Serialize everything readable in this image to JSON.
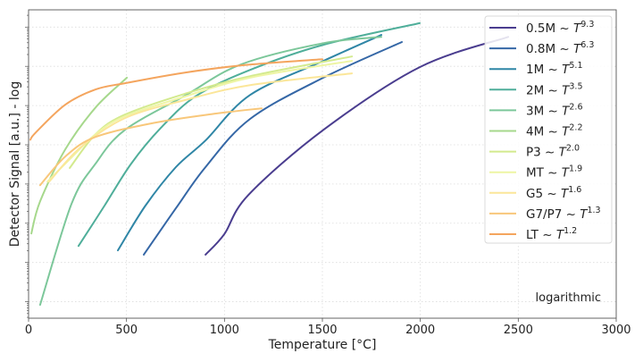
{
  "chart_data": {
    "type": "line",
    "title": "",
    "xlabel": "Temperature [°C]",
    "ylabel": "Detector Signal [a.u.] - log",
    "xlim": [
      0,
      3000
    ],
    "ylim_log10": [
      -0.42,
      7.44
    ],
    "yscale": "log",
    "grid": true,
    "x_ticks": [
      "0",
      "500",
      "1000",
      "1500",
      "2000",
      "2500",
      "3000"
    ],
    "x_tick_values": [
      0,
      500,
      1000,
      1500,
      2000,
      2500,
      3000
    ],
    "y_major_decades": [
      0,
      1,
      2,
      3,
      4,
      5,
      6,
      7
    ],
    "legend_position": "top-right",
    "annotation": "logarithmic",
    "series": [
      {
        "name": "0.5M",
        "exponent": "9.3",
        "color": "#4a3d8f",
        "points": [
          [
            903,
            1.2
          ],
          [
            999,
            1.72
          ],
          [
            1122,
            2.72
          ],
          [
            1505,
            4.38
          ],
          [
            1997,
            5.98
          ],
          [
            2449,
            6.75
          ]
        ]
      },
      {
        "name": "0.8M",
        "exponent": "6.3",
        "color": "#3567a6",
        "points": [
          [
            588,
            1.2
          ],
          [
            752,
            2.38
          ],
          [
            903,
            3.43
          ],
          [
            1131,
            4.66
          ],
          [
            1505,
            5.71
          ],
          [
            1906,
            6.62
          ]
        ]
      },
      {
        "name": "1M",
        "exponent": "5.1",
        "color": "#2f86a6",
        "points": [
          [
            456,
            1.31
          ],
          [
            597,
            2.45
          ],
          [
            752,
            3.43
          ],
          [
            903,
            4.11
          ],
          [
            1131,
            5.27
          ],
          [
            1505,
            6.14
          ],
          [
            1801,
            6.8
          ]
        ]
      },
      {
        "name": "2M",
        "exponent": "3.5",
        "color": "#4fae9a",
        "points": [
          [
            255,
            1.42
          ],
          [
            388,
            2.45
          ],
          [
            524,
            3.52
          ],
          [
            675,
            4.43
          ],
          [
            857,
            5.25
          ],
          [
            1131,
            5.91
          ],
          [
            1505,
            6.55
          ],
          [
            1997,
            7.1
          ]
        ]
      },
      {
        "name": "3M",
        "exponent": "2.6",
        "color": "#7cc79a",
        "points": [
          [
            59,
            -0.08
          ],
          [
            219,
            2.49
          ],
          [
            342,
            3.52
          ],
          [
            492,
            4.38
          ],
          [
            798,
            5.25
          ],
          [
            1085,
            6.05
          ],
          [
            1505,
            6.59
          ],
          [
            1801,
            6.75
          ]
        ]
      },
      {
        "name": "4M",
        "exponent": "2.2",
        "color": "#a6d88c",
        "points": [
          [
            14,
            1.74
          ],
          [
            59,
            2.56
          ],
          [
            187,
            3.88
          ],
          [
            342,
            4.95
          ],
          [
            502,
            5.71
          ]
        ]
      },
      {
        "name": "P3",
        "exponent": "2.0",
        "color": "#d3ea8e",
        "points": [
          [
            210,
            3.41
          ],
          [
            342,
            4.27
          ],
          [
            492,
            4.77
          ],
          [
            798,
            5.3
          ],
          [
            1131,
            5.75
          ],
          [
            1651,
            6.25
          ]
        ]
      },
      {
        "name": "MT",
        "exponent": "1.9",
        "color": "#eef5a4",
        "points": [
          [
            96,
            3.06
          ],
          [
            210,
            3.63
          ],
          [
            342,
            4.27
          ],
          [
            492,
            4.73
          ],
          [
            798,
            5.23
          ],
          [
            1131,
            5.71
          ],
          [
            1651,
            6.14
          ]
        ]
      },
      {
        "name": "G5",
        "exponent": "1.6",
        "color": "#fbe699",
        "points": [
          [
            105,
            3.06
          ],
          [
            264,
            3.93
          ],
          [
            492,
            4.68
          ],
          [
            798,
            5.14
          ],
          [
            1131,
            5.52
          ],
          [
            1651,
            5.82
          ]
        ]
      },
      {
        "name": "G7/P7",
        "exponent": "1.3",
        "color": "#f8c77a",
        "points": [
          [
            59,
            2.97
          ],
          [
            187,
            3.7
          ],
          [
            342,
            4.2
          ],
          [
            643,
            4.56
          ],
          [
            948,
            4.79
          ],
          [
            1190,
            4.93
          ]
        ]
      },
      {
        "name": "LT",
        "exponent": "1.2",
        "color": "#f4a55e",
        "points": [
          [
            9,
            4.13
          ],
          [
            36,
            4.31
          ],
          [
            187,
            5.02
          ],
          [
            342,
            5.41
          ],
          [
            492,
            5.57
          ],
          [
            798,
            5.84
          ],
          [
            1099,
            6.03
          ],
          [
            1500,
            6.18
          ]
        ]
      }
    ]
  }
}
